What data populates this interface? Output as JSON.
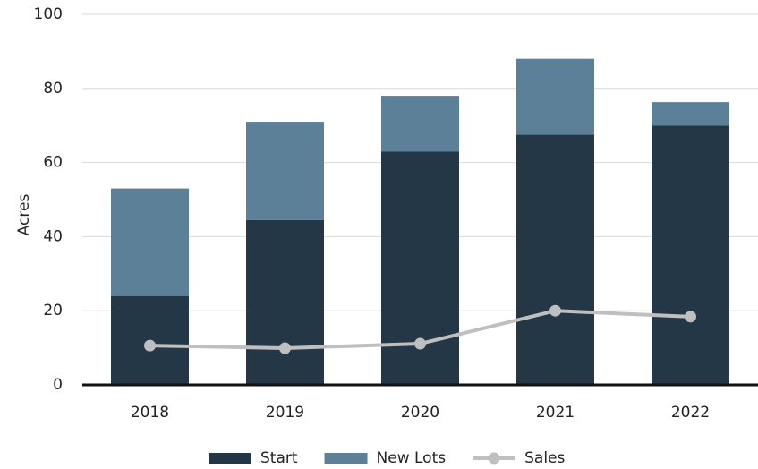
{
  "chart_data": {
    "type": "bar",
    "stacked": true,
    "y_label": "Acres",
    "categories": [
      "2018",
      "2019",
      "2020",
      "2021",
      "2022"
    ],
    "series": [
      {
        "name": "Start",
        "color": "#233746",
        "values": [
          24,
          44.5,
          63,
          67.5,
          70
        ]
      },
      {
        "name": "New Lots",
        "color": "#5d8099",
        "values": [
          29,
          26.5,
          15,
          20.5,
          6.3
        ]
      },
      {
        "name": "Sales",
        "type": "line",
        "color": "#bfbfbf",
        "values": [
          10.6,
          9.9,
          11.1,
          20,
          18.4
        ]
      }
    ],
    "ylim": [
      0,
      100
    ],
    "yticks": [
      0,
      20,
      40,
      60,
      80,
      100
    ],
    "grid": true,
    "legend": "bottom"
  }
}
